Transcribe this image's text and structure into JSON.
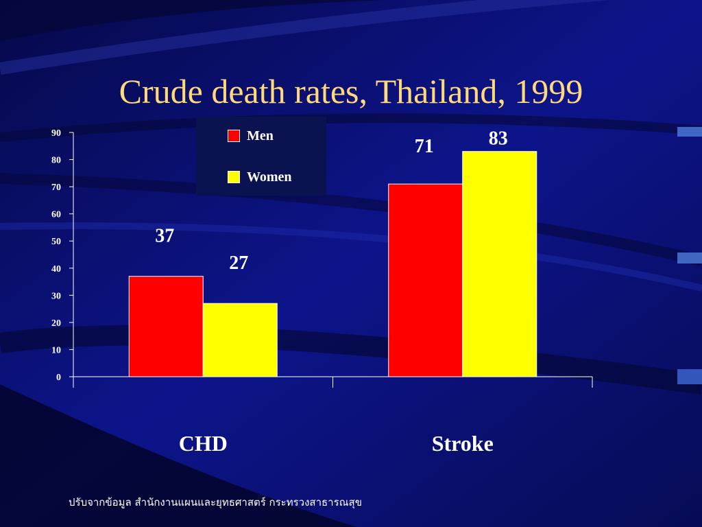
{
  "slide": {
    "title": "Crude death rates, Thailand, 1999",
    "source": "ปรับจากข้อมูล สำนักงานแผนและยุทธศาสตร์ กระทรวงสาธารณสุข"
  },
  "colors": {
    "background": "#0a0f6e",
    "title": "#ffd97a",
    "men": "#ff0000",
    "women": "#ffff00",
    "text": "#ffffff"
  },
  "chart_data": {
    "type": "bar",
    "categories": [
      "CHD",
      "Stroke"
    ],
    "series": [
      {
        "name": "Men",
        "values": [
          37,
          71
        ],
        "color": "#ff0000"
      },
      {
        "name": "Women",
        "values": [
          27,
          83
        ],
        "color": "#ffff00"
      }
    ],
    "ylim": [
      0,
      90
    ],
    "yticks": [
      0,
      10,
      20,
      30,
      40,
      50,
      60,
      70,
      80,
      90
    ],
    "data_labels": true,
    "legend_position": "top-center",
    "grid": false,
    "title": "",
    "xlabel": "",
    "ylabel": ""
  }
}
